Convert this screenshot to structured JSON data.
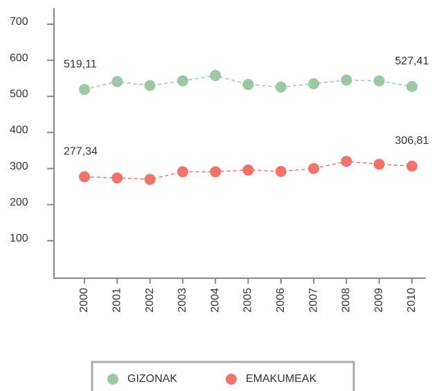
{
  "chart_data": {
    "type": "line",
    "categories": [
      "2000",
      "2001",
      "2002",
      "2003",
      "2004",
      "2005",
      "2006",
      "2007",
      "2008",
      "2009",
      "2010"
    ],
    "series": [
      {
        "name": "GIZONAK",
        "color": "#9dc7a5",
        "values": [
          519.11,
          541,
          530,
          543,
          558,
          533,
          526,
          535,
          545,
          543,
          527.41
        ],
        "value_labels": [
          "519,11",
          null,
          null,
          null,
          null,
          null,
          null,
          null,
          null,
          null,
          "527,41"
        ]
      },
      {
        "name": "EMAKUMEAK",
        "color": "#f0746b",
        "values": [
          277.34,
          274,
          270,
          291,
          291,
          296,
          292,
          300,
          320,
          312,
          306.81
        ],
        "value_labels": [
          "277,34",
          null,
          null,
          null,
          null,
          null,
          null,
          null,
          null,
          null,
          "306,81"
        ]
      }
    ],
    "ylim": [
      0,
      700
    ],
    "yticks": [
      100,
      200,
      300,
      400,
      500,
      600,
      700
    ],
    "grid": false,
    "legend": "bottom"
  }
}
